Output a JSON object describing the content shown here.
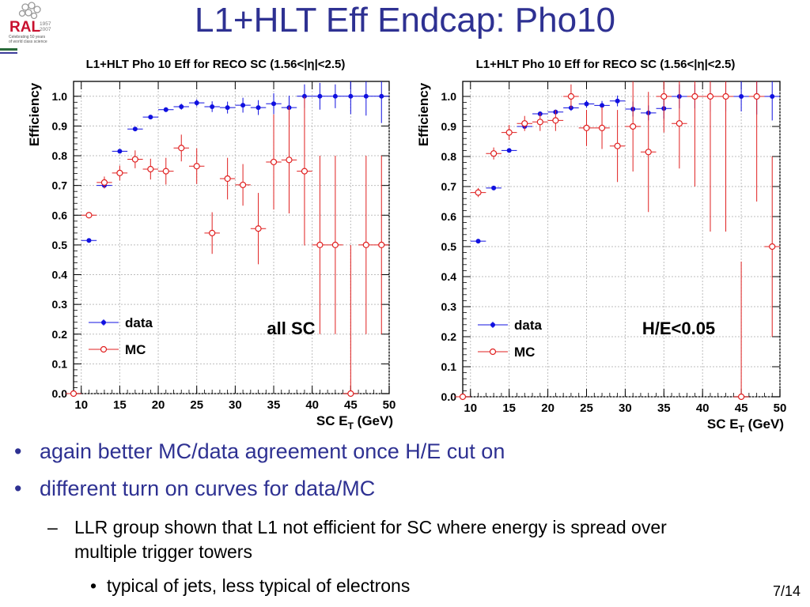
{
  "slide": {
    "title": "L1+HLT Eff Endcap: Pho10",
    "page_number": "7/14",
    "logo": {
      "name": "RAL",
      "years": [
        "1957",
        "2007"
      ],
      "tagline": "Celebrating 50 years of world class science"
    },
    "bullets": [
      {
        "level": 1,
        "text": "again better MC/data agreement once H/E cut on"
      },
      {
        "level": 1,
        "text": "different turn on curves for data/MC"
      },
      {
        "level": 2,
        "text": "LLR group shown that L1 not efficient for SC where energy is spread over multiple trigger towers"
      },
      {
        "level": 3,
        "text": "typical of jets, less typical of electrons"
      }
    ]
  },
  "colors": {
    "title": "#2e3192",
    "data": "#1010e0",
    "mc": "#e02020",
    "grid": "#bdbdbd"
  },
  "chart_data": [
    {
      "type": "scatter",
      "title": "L1+HLT Pho 10 Eff  for RECO SC (1.56<|η|<2.5)",
      "xlabel": "SC E_T (GeV)",
      "ylabel": "Efficiency",
      "annotation": "all SC",
      "xlim": [
        9,
        50
      ],
      "ylim": [
        0,
        1.05
      ],
      "xticks": [
        10,
        15,
        20,
        25,
        30,
        35,
        40,
        45,
        50
      ],
      "yticks": [
        0.0,
        0.1,
        0.2,
        0.3,
        0.4,
        0.5,
        0.6,
        0.7,
        0.8,
        0.9,
        1.0
      ],
      "grid": true,
      "legend": "bottom-left",
      "series": [
        {
          "name": "data",
          "marker": "filled-circle",
          "color": "#1010e0",
          "x": [
            9,
            11,
            13,
            15,
            17,
            19,
            21,
            23,
            25,
            27,
            29,
            31,
            33,
            35,
            37,
            39,
            41,
            43,
            45,
            47,
            49
          ],
          "y": [
            0.0,
            0.515,
            0.7,
            0.815,
            0.89,
            0.93,
            0.955,
            0.965,
            0.978,
            0.965,
            0.962,
            0.97,
            0.962,
            0.975,
            0.962,
            1.0,
            1.0,
            1.0,
            1.0,
            1.0,
            1.0
          ],
          "yerr": [
            0,
            0.005,
            0.006,
            0.006,
            0.007,
            0.007,
            0.008,
            0.01,
            0.012,
            0.018,
            0.02,
            0.025,
            0.025,
            0.035,
            0.04,
            0.04,
            0.045,
            0.04,
            0.06,
            0.065,
            0.09
          ]
        },
        {
          "name": "MC",
          "marker": "open-circle",
          "color": "#e02020",
          "x": [
            9,
            11,
            13,
            15,
            17,
            19,
            21,
            23,
            25,
            27,
            29,
            31,
            33,
            35,
            37,
            39,
            41,
            43,
            45,
            47,
            49
          ],
          "y": [
            0.0,
            0.6,
            0.71,
            0.742,
            0.788,
            0.755,
            0.748,
            0.826,
            0.765,
            0.54,
            0.723,
            0.702,
            0.555,
            0.779,
            0.786,
            0.748,
            0.5,
            0.5,
            0.0,
            0.5,
            0.5
          ],
          "yerr": [
            0,
            0.01,
            0.02,
            0.025,
            0.03,
            0.035,
            0.045,
            0.045,
            0.06,
            0.07,
            0.07,
            0.07,
            0.12,
            0.16,
            0.18,
            0.25,
            0.3,
            0.3,
            0.5,
            0.3,
            0.3
          ]
        }
      ]
    },
    {
      "type": "scatter",
      "title": "L1+HLT Pho 10 Eff  for RECO SC (1.56<|η|<2.5)",
      "xlabel": "SC E_T (GeV)",
      "ylabel": "Efficiency",
      "annotation": "H/E<0.05",
      "xlim": [
        9,
        50
      ],
      "ylim": [
        0,
        1.05
      ],
      "xticks": [
        10,
        15,
        20,
        25,
        30,
        35,
        40,
        45,
        50
      ],
      "yticks": [
        0.0,
        0.1,
        0.2,
        0.3,
        0.4,
        0.5,
        0.6,
        0.7,
        0.8,
        0.9,
        1.0
      ],
      "grid": true,
      "legend": "bottom-left",
      "series": [
        {
          "name": "data",
          "marker": "filled-circle",
          "color": "#1010e0",
          "x": [
            9,
            11,
            13,
            15,
            17,
            19,
            21,
            23,
            25,
            27,
            29,
            31,
            33,
            35,
            37,
            39,
            41,
            43,
            45,
            47,
            49
          ],
          "y": [
            0.0,
            0.518,
            0.695,
            0.82,
            0.9,
            0.942,
            0.948,
            0.962,
            0.975,
            0.97,
            0.985,
            0.958,
            0.945,
            0.96,
            1.0,
            1.0,
            1.0,
            1.0,
            1.0,
            1.0,
            1.0
          ],
          "yerr": [
            0,
            0.005,
            0.006,
            0.007,
            0.007,
            0.008,
            0.008,
            0.01,
            0.012,
            0.015,
            0.018,
            0.025,
            0.025,
            0.035,
            0.04,
            0.04,
            0.05,
            0.05,
            0.05,
            0.06,
            0.08
          ]
        },
        {
          "name": "MC",
          "marker": "open-circle",
          "color": "#e02020",
          "x": [
            9,
            11,
            13,
            15,
            17,
            19,
            21,
            23,
            25,
            27,
            29,
            31,
            33,
            35,
            37,
            39,
            41,
            43,
            45,
            47,
            49
          ],
          "y": [
            0.0,
            0.68,
            0.81,
            0.88,
            0.91,
            0.915,
            0.92,
            1.0,
            0.895,
            0.895,
            0.835,
            0.9,
            0.815,
            1.0,
            0.91,
            1.0,
            1.0,
            1.0,
            0.0,
            1.0,
            0.5
          ],
          "yerr": [
            0,
            0.015,
            0.02,
            0.025,
            0.025,
            0.03,
            0.035,
            0.04,
            0.06,
            0.07,
            0.12,
            0.15,
            0.2,
            0.12,
            0.15,
            0.3,
            0.45,
            0.45,
            0.45,
            0.35,
            0.3
          ]
        }
      ]
    }
  ]
}
